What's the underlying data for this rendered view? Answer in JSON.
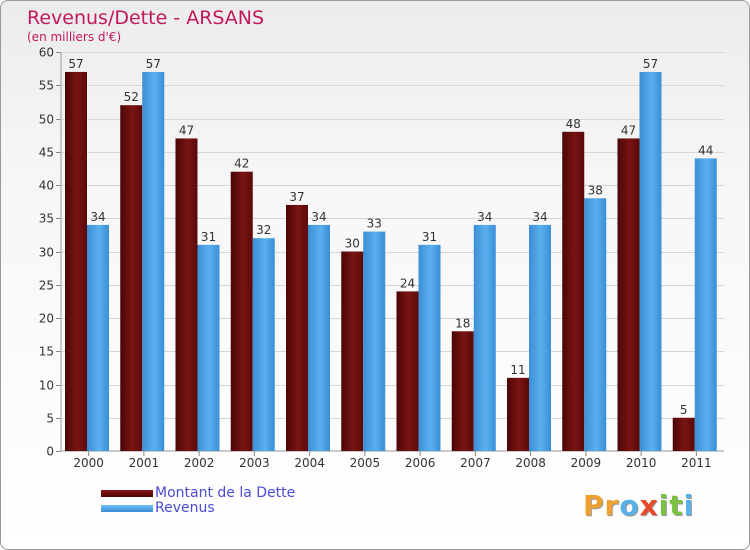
{
  "title": "Revenus/Dette - ARSANS",
  "subtitle": "(en milliers d'€)",
  "logo": "Proxiti",
  "colors": {
    "dette": "#6b0d0d",
    "revenus": "#4aa3e6",
    "title": "#c2185b",
    "legend_text": "#4b4bd6"
  },
  "chart_data": {
    "type": "bar",
    "categories": [
      "2000",
      "2001",
      "2002",
      "2003",
      "2004",
      "2005",
      "2006",
      "2007",
      "2008",
      "2009",
      "2010",
      "2011"
    ],
    "series": [
      {
        "name": "Montant de la Dette",
        "values": [
          57,
          52,
          47,
          42,
          37,
          30,
          24,
          18,
          11,
          48,
          47,
          5
        ]
      },
      {
        "name": "Revenus",
        "values": [
          34,
          57,
          31,
          32,
          34,
          33,
          31,
          34,
          34,
          38,
          57,
          44
        ]
      }
    ],
    "yticks": [
      0,
      5,
      10,
      15,
      20,
      25,
      30,
      35,
      40,
      45,
      50,
      55,
      60
    ],
    "ylim": [
      0,
      60
    ],
    "grid": true,
    "legend_position": "bottom-left"
  }
}
